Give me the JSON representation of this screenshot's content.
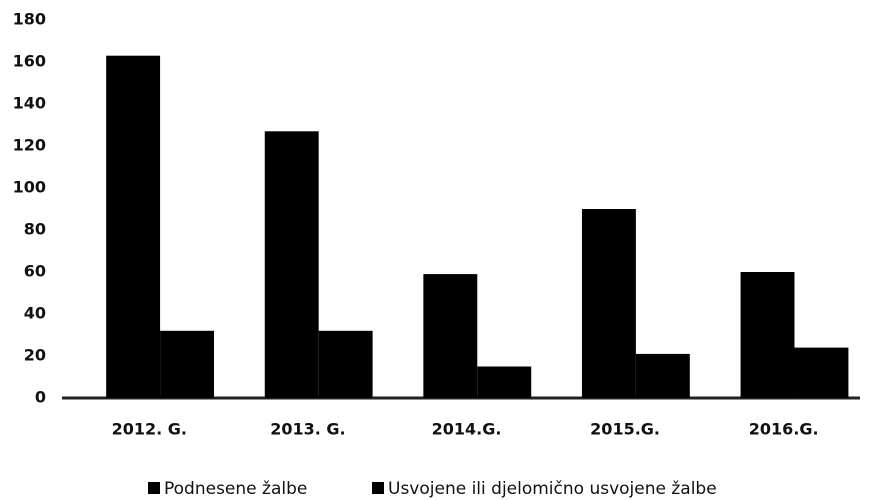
{
  "chart_data": {
    "type": "bar",
    "categories": [
      "2012. G.",
      "2013. G.",
      "2014.G.",
      "2015.G.",
      "2016.G."
    ],
    "series": [
      {
        "name": "Podnesene žalbe",
        "color": "#000000",
        "values": [
          163,
          127,
          59,
          90,
          60
        ]
      },
      {
        "name": "Usvojene ili djelomično usvojene žalbe",
        "color": "#000000",
        "values": [
          32,
          32,
          15,
          21,
          24
        ]
      }
    ],
    "ylim": [
      0,
      180
    ],
    "yticks": [
      0,
      20,
      40,
      60,
      80,
      100,
      120,
      140,
      160,
      180
    ],
    "grid": false
  }
}
